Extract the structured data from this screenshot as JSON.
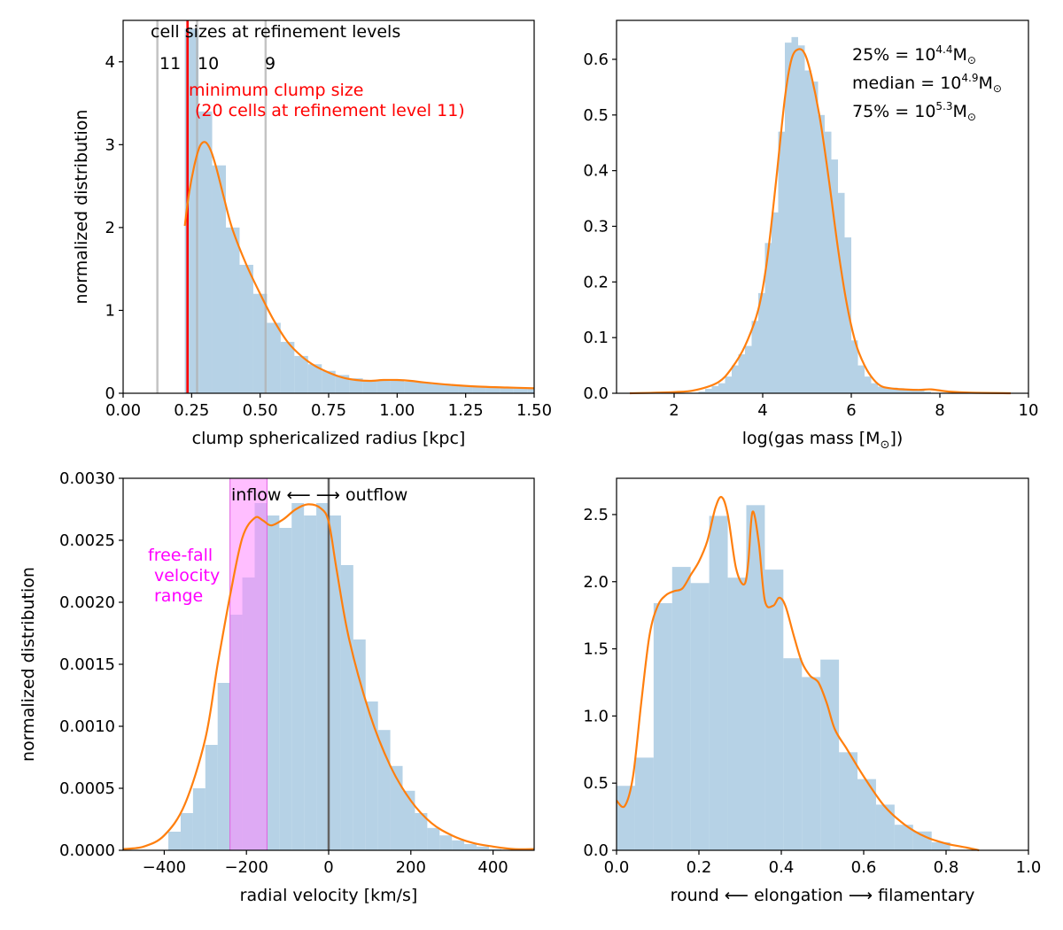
{
  "chart_data": [
    {
      "id": "p1",
      "type": "histogram",
      "xlabel": "clump sphericalized radius [kpc]",
      "ylabel": "normalized distribution",
      "xlim": [
        0.0,
        1.5
      ],
      "ylim": [
        0,
        4.5
      ],
      "xticks": [
        0.0,
        0.25,
        0.5,
        0.75,
        1.0,
        1.25,
        1.5
      ],
      "xtick_labels": [
        "0.00",
        "0.25",
        "0.50",
        "0.75",
        "1.00",
        "1.25",
        "1.50"
      ],
      "yticks": [
        0,
        1,
        2,
        3,
        4
      ],
      "ytick_labels": [
        "0",
        "1",
        "2",
        "3",
        "4"
      ],
      "bin_edges": [
        0.225,
        0.275,
        0.325,
        0.375,
        0.425,
        0.475,
        0.525,
        0.575,
        0.625,
        0.675,
        0.725,
        0.775,
        0.825,
        0.875,
        0.925,
        0.975,
        1.025,
        1.075,
        1.125,
        1.175,
        1.225,
        1.275,
        1.325,
        1.375,
        1.425,
        1.475,
        1.5
      ],
      "bin_values": [
        4.4,
        3.4,
        2.75,
        2.0,
        1.55,
        1.2,
        0.85,
        0.62,
        0.45,
        0.35,
        0.27,
        0.22,
        0.18,
        0.15,
        0.15,
        0.15,
        0.14,
        0.13,
        0.11,
        0.1,
        0.09,
        0.08,
        0.07,
        0.065,
        0.06,
        0.055
      ],
      "kde_x": [
        0.225,
        0.24,
        0.26,
        0.28,
        0.3,
        0.32,
        0.34,
        0.37,
        0.4,
        0.45,
        0.5,
        0.55,
        0.6,
        0.65,
        0.7,
        0.75,
        0.8,
        0.85,
        0.9,
        0.95,
        1.0,
        1.05,
        1.1,
        1.2,
        1.3,
        1.4,
        1.5
      ],
      "kde_y": [
        2.02,
        2.4,
        2.75,
        2.98,
        3.03,
        2.93,
        2.72,
        2.33,
        1.97,
        1.55,
        1.2,
        0.88,
        0.62,
        0.45,
        0.33,
        0.25,
        0.19,
        0.16,
        0.15,
        0.16,
        0.16,
        0.15,
        0.13,
        0.1,
        0.08,
        0.07,
        0.06
      ],
      "vlines_gray": [
        0.125,
        0.27,
        0.52
      ],
      "vline_red": 0.235,
      "level_labels": [
        "11",
        "10",
        "9"
      ],
      "level_header": "cell sizes at refinement levels",
      "red_annotation": [
        "minimum clump size",
        "(20 cells at refinement level 11)"
      ]
    },
    {
      "id": "p2",
      "type": "histogram",
      "xlabel": "log(gas mass [M",
      "xlabel_sub": "⊙",
      "xlabel_end": "])",
      "ylabel": "",
      "xlim": [
        0.7,
        10.0
      ],
      "ylim": [
        0,
        0.67
      ],
      "xticks": [
        2,
        4,
        6,
        8,
        10
      ],
      "xtick_labels": [
        "2",
        "4",
        "6",
        "8",
        "10"
      ],
      "yticks": [
        0.0,
        0.1,
        0.2,
        0.3,
        0.4,
        0.5,
        0.6
      ],
      "ytick_labels": [
        "0.0",
        "0.1",
        "0.2",
        "0.3",
        "0.4",
        "0.5",
        "0.6"
      ],
      "bin_edges": [
        2.55,
        2.7,
        2.85,
        3.0,
        3.15,
        3.3,
        3.45,
        3.6,
        3.75,
        3.9,
        4.05,
        4.2,
        4.35,
        4.5,
        4.65,
        4.8,
        4.95,
        5.1,
        5.25,
        5.4,
        5.55,
        5.7,
        5.85,
        6.0,
        6.15,
        6.3,
        6.45,
        6.6,
        6.75,
        6.9,
        7.05,
        7.2,
        7.35,
        7.5,
        7.65,
        7.8
      ],
      "bin_values": [
        0.003,
        0.008,
        0.013,
        0.018,
        0.03,
        0.05,
        0.07,
        0.085,
        0.13,
        0.18,
        0.27,
        0.325,
        0.47,
        0.63,
        0.64,
        0.625,
        0.58,
        0.56,
        0.5,
        0.47,
        0.42,
        0.36,
        0.28,
        0.095,
        0.05,
        0.03,
        0.018,
        0.012,
        0.01,
        0.01,
        0.009,
        0.007,
        0.008,
        0.006,
        0.003
      ],
      "kde_x": [
        1.0,
        2.0,
        2.5,
        3.0,
        3.3,
        3.6,
        3.9,
        4.1,
        4.3,
        4.5,
        4.65,
        4.8,
        4.95,
        5.1,
        5.3,
        5.5,
        5.7,
        5.9,
        6.1,
        6.3,
        6.5,
        6.7,
        7.0,
        7.5,
        7.8,
        8.2,
        8.7,
        9.6
      ],
      "kde_y": [
        0.0,
        0.002,
        0.006,
        0.02,
        0.045,
        0.085,
        0.15,
        0.24,
        0.38,
        0.53,
        0.6,
        0.618,
        0.61,
        0.57,
        0.49,
        0.38,
        0.26,
        0.16,
        0.09,
        0.05,
        0.025,
        0.012,
        0.008,
        0.006,
        0.007,
        0.003,
        0.001,
        0.0
      ],
      "stats": [
        {
          "label": "25% = 10",
          "exp": "4.4",
          "unit": "M",
          "sub": "⊙"
        },
        {
          "label": "median = 10",
          "exp": "4.9",
          "unit": "M",
          "sub": "⊙"
        },
        {
          "label": "75% = 10",
          "exp": "5.3",
          "unit": "M",
          "sub": "⊙"
        }
      ]
    },
    {
      "id": "p3",
      "type": "histogram",
      "xlabel": "radial velocity [km/s]",
      "ylabel": "normalized distribution",
      "xlim": [
        -500,
        500
      ],
      "ylim": [
        0,
        0.003
      ],
      "xticks": [
        -400,
        -200,
        0,
        200,
        400
      ],
      "xtick_labels": [
        "−400",
        "−200",
        "0",
        "200",
        "400"
      ],
      "yticks": [
        0.0,
        0.0005,
        0.001,
        0.0015,
        0.002,
        0.0025,
        0.003
      ],
      "ytick_labels": [
        "0.0000",
        "0.0005",
        "0.0010",
        "0.0015",
        "0.0020",
        "0.0025",
        "0.0030"
      ],
      "bin_edges": [
        -390,
        -360,
        -330,
        -300,
        -270,
        -240,
        -210,
        -180,
        -150,
        -120,
        -90,
        -60,
        -30,
        0,
        30,
        60,
        90,
        120,
        150,
        180,
        210,
        240,
        270,
        300,
        330,
        360,
        390,
        420
      ],
      "bin_values": [
        0.00015,
        0.0003,
        0.0005,
        0.00085,
        0.00135,
        0.0019,
        0.0022,
        0.0028,
        0.0027,
        0.0026,
        0.0028,
        0.0027,
        0.0028,
        0.0027,
        0.0023,
        0.0017,
        0.0012,
        0.00097,
        0.00068,
        0.00048,
        0.0003,
        0.00018,
        0.00012,
        8e-05,
        5e-05,
        3e-05,
        1e-05
      ],
      "kde_x": [
        -500,
        -450,
        -400,
        -350,
        -300,
        -270,
        -240,
        -210,
        -180,
        -160,
        -140,
        -110,
        -80,
        -50,
        -20,
        0,
        20,
        50,
        100,
        150,
        200,
        250,
        300,
        350,
        400,
        450,
        500
      ],
      "kde_y": [
        1e-05,
        3e-05,
        0.00012,
        0.00037,
        0.0009,
        0.0015,
        0.00205,
        0.00252,
        0.00268,
        0.00266,
        0.00262,
        0.00267,
        0.00275,
        0.00279,
        0.00276,
        0.00265,
        0.00225,
        0.0017,
        0.0011,
        0.00068,
        0.0004,
        0.00022,
        0.00012,
        6e-05,
        3e-05,
        1e-05,
        1e-05
      ],
      "shade_range": [
        -240,
        -150
      ],
      "vline": 0,
      "flow_label": "inflow ⟵  ⟶ outflow",
      "freefall_label": [
        "free-fall",
        "velocity",
        "range"
      ]
    },
    {
      "id": "p4",
      "type": "histogram",
      "xlabel": "round ⟵   elongation   ⟶ filamentary",
      "ylabel": "",
      "xlim": [
        0.0,
        1.0
      ],
      "ylim": [
        0,
        2.77
      ],
      "xticks": [
        0.0,
        0.2,
        0.4,
        0.6,
        0.8,
        1.0
      ],
      "xtick_labels": [
        "0.0",
        "0.2",
        "0.4",
        "0.6",
        "0.8",
        "1.0"
      ],
      "yticks": [
        0.0,
        0.5,
        1.0,
        1.5,
        2.0,
        2.5
      ],
      "ytick_labels": [
        "0.0",
        "0.5",
        "1.0",
        "1.5",
        "2.0",
        "2.5"
      ],
      "bin_edges": [
        0.0,
        0.045,
        0.09,
        0.135,
        0.18,
        0.225,
        0.27,
        0.315,
        0.36,
        0.405,
        0.45,
        0.495,
        0.54,
        0.585,
        0.63,
        0.675,
        0.72,
        0.765,
        0.81
      ],
      "bin_values": [
        0.48,
        0.69,
        1.84,
        2.11,
        1.99,
        2.49,
        2.03,
        2.57,
        2.09,
        1.43,
        1.29,
        1.42,
        0.73,
        0.53,
        0.34,
        0.19,
        0.14,
        0.06
      ],
      "kde_x": [
        0.0,
        0.02,
        0.04,
        0.06,
        0.08,
        0.1,
        0.12,
        0.14,
        0.16,
        0.18,
        0.2,
        0.22,
        0.24,
        0.255,
        0.27,
        0.29,
        0.31,
        0.32,
        0.33,
        0.345,
        0.36,
        0.38,
        0.395,
        0.41,
        0.43,
        0.45,
        0.47,
        0.49,
        0.51,
        0.53,
        0.56,
        0.6,
        0.65,
        0.7,
        0.75,
        0.8,
        0.85,
        0.88
      ],
      "kde_y": [
        0.37,
        0.33,
        0.55,
        1.1,
        1.6,
        1.82,
        1.9,
        1.93,
        1.95,
        2.05,
        2.15,
        2.3,
        2.55,
        2.63,
        2.5,
        2.1,
        1.98,
        2.15,
        2.52,
        2.3,
        1.86,
        1.82,
        1.88,
        1.82,
        1.6,
        1.4,
        1.3,
        1.25,
        1.1,
        0.9,
        0.75,
        0.55,
        0.33,
        0.19,
        0.1,
        0.05,
        0.02,
        0.0
      ]
    }
  ],
  "colors": {
    "hist": "#9ec3dd",
    "kde": "#ff7f0e",
    "red": "#ff0000",
    "gray_line": "#c8c8c8",
    "dark_line": "#646464",
    "magenta_text": "#ff00ff",
    "magenta_fill": "#ff88ff"
  }
}
